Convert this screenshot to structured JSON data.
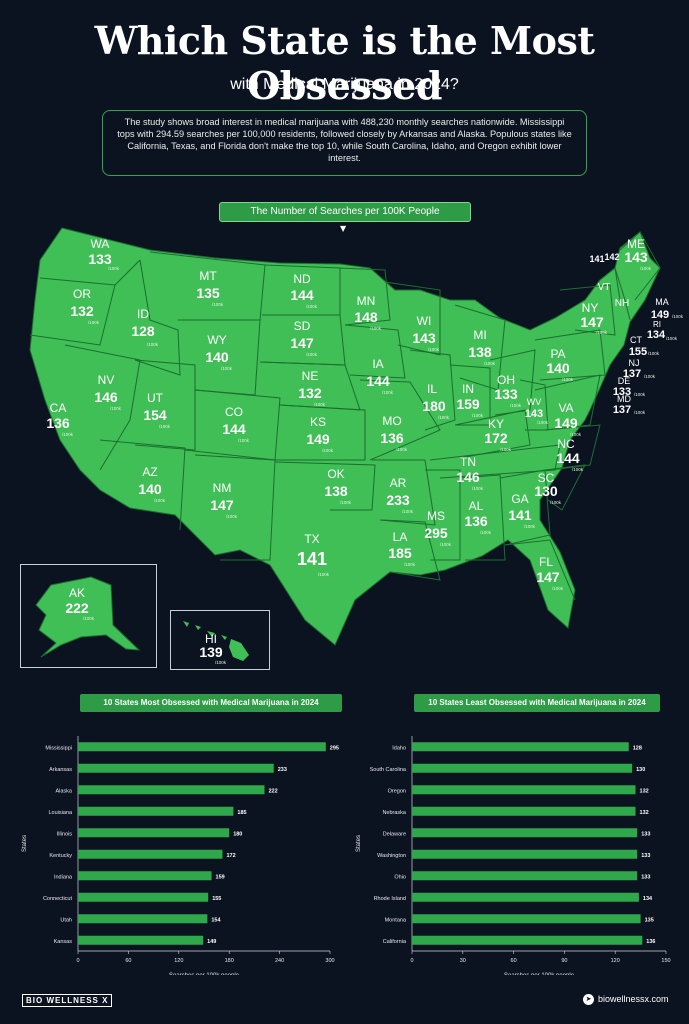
{
  "header": {
    "title": "Which State is the Most Obsessed",
    "subtitle": "with Medical Marijuana in 2024?",
    "description": "The study shows broad interest in medical marijuana with 488,230 monthly searches nationwide. Mississippi tops with 294.59 searches per 100,000 residents, followed closely by Arkansas and Alaska. Populous states like California, Texas, and Florida don't make the top 10, while South Carolina, Idaho, and Oregon exhibit lower interest."
  },
  "map": {
    "banner": "The Number of Searches per 100K People",
    "unit": "/100k",
    "states": [
      {
        "abbr": "WA",
        "value": "133"
      },
      {
        "abbr": "OR",
        "value": "132"
      },
      {
        "abbr": "CA",
        "value": "136"
      },
      {
        "abbr": "ID",
        "value": "128"
      },
      {
        "abbr": "NV",
        "value": "146"
      },
      {
        "abbr": "MT",
        "value": "135"
      },
      {
        "abbr": "WY",
        "value": "140"
      },
      {
        "abbr": "UT",
        "value": "154"
      },
      {
        "abbr": "AZ",
        "value": "140"
      },
      {
        "abbr": "CO",
        "value": "144"
      },
      {
        "abbr": "NM",
        "value": "147"
      },
      {
        "abbr": "ND",
        "value": "144"
      },
      {
        "abbr": "SD",
        "value": "147"
      },
      {
        "abbr": "NE",
        "value": "132"
      },
      {
        "abbr": "KS",
        "value": "149"
      },
      {
        "abbr": "OK",
        "value": "138"
      },
      {
        "abbr": "TX",
        "value": "141"
      },
      {
        "abbr": "MN",
        "value": "148"
      },
      {
        "abbr": "IA",
        "value": "144"
      },
      {
        "abbr": "MO",
        "value": "136"
      },
      {
        "abbr": "AR",
        "value": "233"
      },
      {
        "abbr": "LA",
        "value": "185"
      },
      {
        "abbr": "WI",
        "value": "143"
      },
      {
        "abbr": "IL",
        "value": "180"
      },
      {
        "abbr": "MS",
        "value": "295"
      },
      {
        "abbr": "MI",
        "value": "138"
      },
      {
        "abbr": "IN",
        "value": "159"
      },
      {
        "abbr": "KY",
        "value": "172"
      },
      {
        "abbr": "TN",
        "value": "146"
      },
      {
        "abbr": "AL",
        "value": "136"
      },
      {
        "abbr": "GA",
        "value": "141"
      },
      {
        "abbr": "FL",
        "value": "147"
      },
      {
        "abbr": "OH",
        "value": "133"
      },
      {
        "abbr": "WV",
        "value": "143"
      },
      {
        "abbr": "VA",
        "value": "149"
      },
      {
        "abbr": "NC",
        "value": "144"
      },
      {
        "abbr": "SC",
        "value": "130"
      },
      {
        "abbr": "PA",
        "value": "140"
      },
      {
        "abbr": "NY",
        "value": "147"
      },
      {
        "abbr": "VT",
        "value": "141"
      },
      {
        "abbr": "NH",
        "value": "142"
      },
      {
        "abbr": "ME",
        "value": "143"
      },
      {
        "abbr": "MA",
        "value": "149"
      },
      {
        "abbr": "RI",
        "value": "134"
      },
      {
        "abbr": "CT",
        "value": "155"
      },
      {
        "abbr": "NJ",
        "value": "137"
      },
      {
        "abbr": "DE",
        "value": "133"
      },
      {
        "abbr": "MD",
        "value": "137"
      },
      {
        "abbr": "AK",
        "value": "222"
      },
      {
        "abbr": "HI",
        "value": "139"
      }
    ]
  },
  "chart_data": [
    {
      "type": "bar",
      "title": "10 States Most Obsessed with Medical Marijuana in 2024",
      "categories": [
        "Mississippi",
        "Arkansas",
        "Alaska",
        "Louisiana",
        "Illinois",
        "Kentucky",
        "Indiana",
        "Connecticut",
        "Utah",
        "Kansas"
      ],
      "values": [
        295,
        233,
        222,
        185,
        180,
        172,
        159,
        155,
        154,
        149
      ],
      "xlabel": "Searches per 100k people",
      "ylabel": "States",
      "xlim": [
        0,
        300
      ],
      "ticks": [
        "0",
        "60",
        "120",
        "180",
        "240",
        "300"
      ]
    },
    {
      "type": "bar",
      "title": "10 States Least Obsessed with Medical Marijuana in 2024",
      "categories": [
        "Idaho",
        "South Carolina",
        "Oregon",
        "Nebraska",
        "Delaware",
        "Washington",
        "Ohio",
        "Rhode Island",
        "Montana",
        "California"
      ],
      "values": [
        128,
        130,
        132,
        132,
        133,
        133,
        133,
        134,
        135,
        136
      ],
      "xlabel": "Searches per 100k people",
      "ylabel": "States",
      "xlim": [
        0,
        150
      ],
      "ticks": [
        "0",
        "30",
        "60",
        "90",
        "120",
        "150"
      ]
    }
  ],
  "colors": {
    "background": "#0b1220",
    "map_green": "#3fbf55",
    "bar_green": "#2ea84a"
  },
  "footer": {
    "brand": "BIO WELLNESS X",
    "site": "biowellnessx.com"
  }
}
